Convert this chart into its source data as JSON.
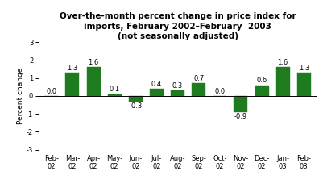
{
  "categories": [
    "Feb-\n02",
    "Mar-\n02",
    "Apr-\n02",
    "May-\n02",
    "Jun-\n02",
    "Jul-\n02",
    "Aug-\n02",
    "Sep-\n02",
    "Oct-\n02",
    "Nov-\n02",
    "Dec-\n02",
    "Jan-\n03",
    "Feb-\n03"
  ],
  "values": [
    0.0,
    1.3,
    1.6,
    0.1,
    -0.3,
    0.4,
    0.3,
    0.7,
    0.0,
    -0.9,
    0.6,
    1.6,
    1.3
  ],
  "bar_color": "#1e7b1e",
  "title_line1": "Over-the-month percent change in price index for",
  "title_line2": "imports, February 2002–February  2003",
  "title_line3": "(not seasonally adjusted)",
  "ylabel": "Percent change",
  "ylim": [
    -3,
    3
  ],
  "yticks": [
    -3,
    -2,
    -1,
    0,
    1,
    2,
    3
  ],
  "background_color": "#ffffff",
  "bar_label_fontsize": 6.0,
  "tick_fontsize": 6.0,
  "ylabel_fontsize": 6.5,
  "title_fontsize": 7.5,
  "bar_width": 0.65
}
